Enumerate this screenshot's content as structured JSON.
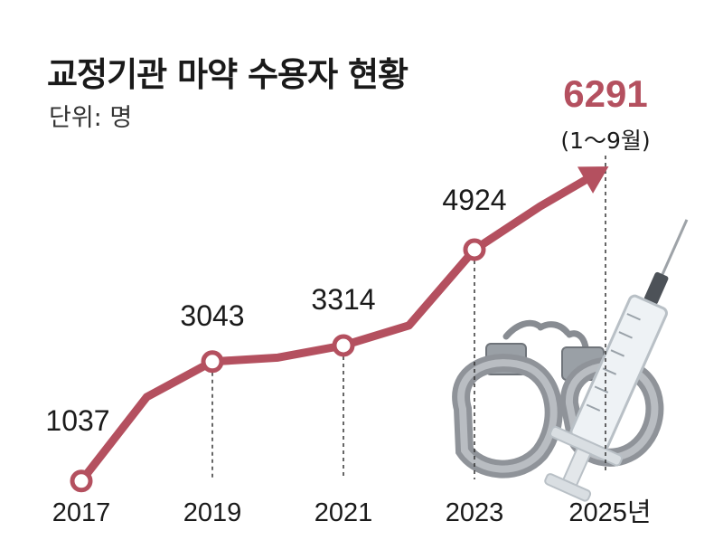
{
  "chart_data": {
    "type": "line",
    "title": "교정기관 마약 수용자 현황",
    "subtitle": "단위: 명",
    "x": [
      "2017",
      "2018",
      "2019",
      "2020",
      "2021",
      "2022",
      "2023",
      "2024",
      "2025"
    ],
    "x_tick_labels": [
      "2017",
      "2019",
      "2021",
      "2023",
      "2025년"
    ],
    "series": [
      {
        "values": [
          1037,
          2450,
          3043,
          3110,
          3314,
          3650,
          4924,
          5650,
          6291
        ]
      }
    ],
    "labeled_points": [
      {
        "x": "2017",
        "label": "1037"
      },
      {
        "x": "2019",
        "label": "3043"
      },
      {
        "x": "2021",
        "label": "3314"
      },
      {
        "x": "2023",
        "label": "4924"
      },
      {
        "x": "2025",
        "label": "6291",
        "note": "(1～9월)",
        "highlight": true
      }
    ],
    "ylim": [
      0,
      7000
    ],
    "grid": false,
    "line_color": "#b4505f",
    "highlight_color": "#b4505f"
  },
  "illustration": {
    "icons": [
      "handcuffs-icon",
      "syringe-icon"
    ]
  }
}
